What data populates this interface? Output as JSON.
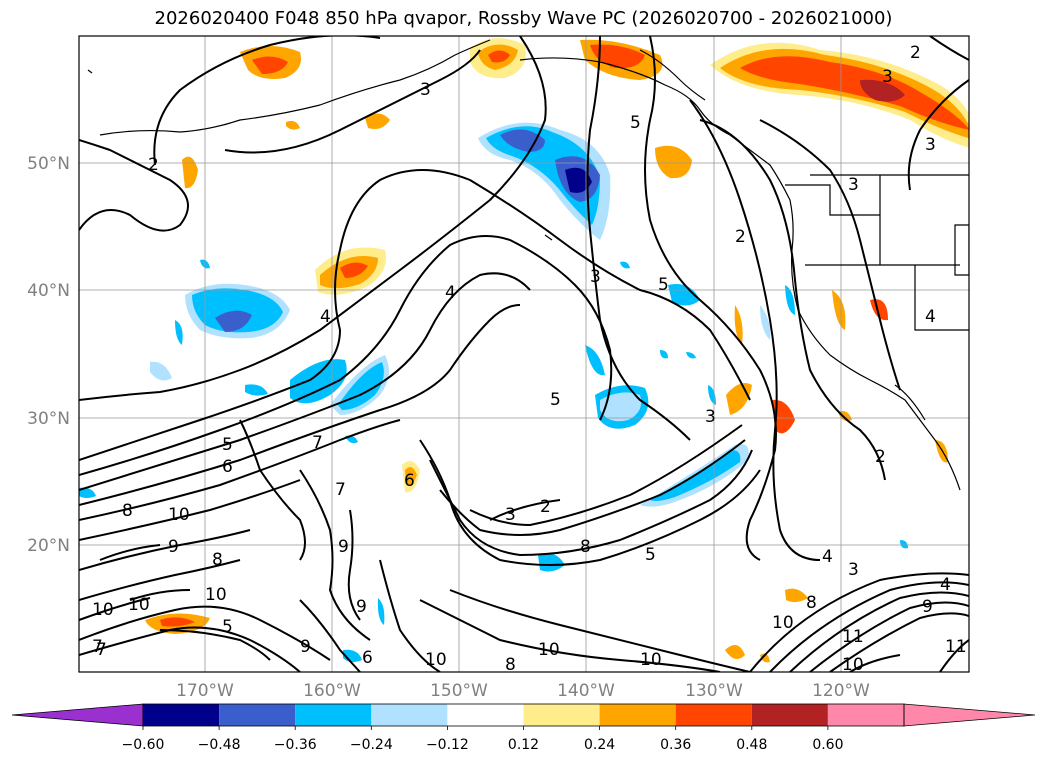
{
  "title": "2026020400 F048 850 hPa qvapor, Rossby Wave PC (2026020700 - 2026021000)",
  "lat_labels": [
    "50°N",
    "40°N",
    "30°N",
    "20°N"
  ],
  "lon_labels": [
    "170°W",
    "160°W",
    "150°W",
    "140°W",
    "130°W",
    "120°W"
  ],
  "colorbar": {
    "ticks": [
      "−0.60",
      "−0.48",
      "−0.36",
      "−0.24",
      "−0.12",
      "0.12",
      "0.24",
      "0.36",
      "0.48",
      "0.60"
    ],
    "colors": {
      "under": "#9b30d0",
      "bins": [
        "#00008b",
        "#3a5fcd",
        "#00bfff",
        "#b0e2ff",
        "#ffffff",
        "#ffec8b",
        "#ffa500",
        "#ff4500",
        "#b22222",
        "#ff88aa"
      ],
      "over": "#ff88aa"
    }
  },
  "contour_labels": [
    "2",
    "3",
    "3",
    "5",
    "2",
    "3",
    "4",
    "3",
    "5",
    "5",
    "4",
    "4",
    "3",
    "2",
    "5",
    "6",
    "7",
    "8",
    "10",
    "9",
    "8",
    "7",
    "9",
    "6",
    "3",
    "2",
    "8",
    "5",
    "3",
    "2",
    "4",
    "3",
    "9",
    "8",
    "10",
    "10",
    "10",
    "5",
    "7",
    "10",
    "9",
    "6",
    "10",
    "8",
    "10",
    "10",
    "11",
    "10",
    "11",
    "9",
    "4",
    "7"
  ]
}
